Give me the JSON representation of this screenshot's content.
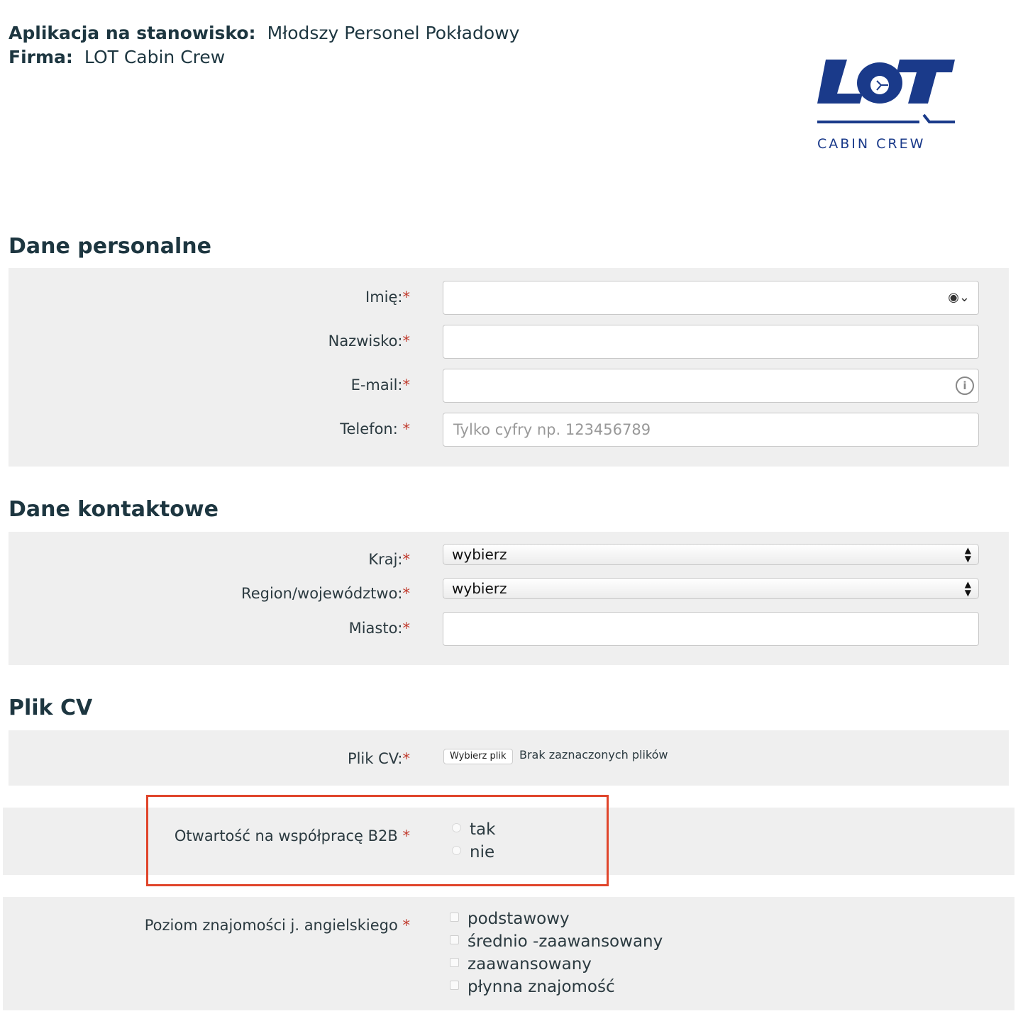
{
  "header": {
    "position_label": "Aplikacja na stanowisko:",
    "position_value": "Młodszy Personel Pokładowy",
    "company_label": "Firma:",
    "company_value": "LOT Cabin Crew"
  },
  "logo": {
    "text": "LOT",
    "subtitle": "CABIN CREW",
    "color": "#1a3a8a"
  },
  "personal": {
    "title": "Dane personalne",
    "first_name_label": "Imię:",
    "last_name_label": "Nazwisko:",
    "email_label": "E-mail:",
    "phone_label": "Telefon: ",
    "phone_placeholder": "Tylko cyfry np. 123456789"
  },
  "contact": {
    "title": "Dane kontaktowe",
    "country_label": "Kraj:",
    "country_value": "wybierz",
    "region_label": "Region/województwo:",
    "region_value": "wybierz",
    "city_label": "Miasto:"
  },
  "cv": {
    "title": "Plik CV",
    "label": "Plik CV:",
    "button": "Wybierz plik",
    "status": "Brak zaznaczonych plików"
  },
  "b2b": {
    "label": "Otwartość na współpracę B2B ",
    "options": [
      "tak",
      "nie"
    ],
    "highlight_color": "#e0452b"
  },
  "english": {
    "label": "Poziom znajomości j. angielskiego ",
    "options": [
      "podstawowy",
      "średnio -zaawansowany",
      "zaawansowany",
      "płynna znajomość"
    ]
  },
  "required_mark": "*"
}
